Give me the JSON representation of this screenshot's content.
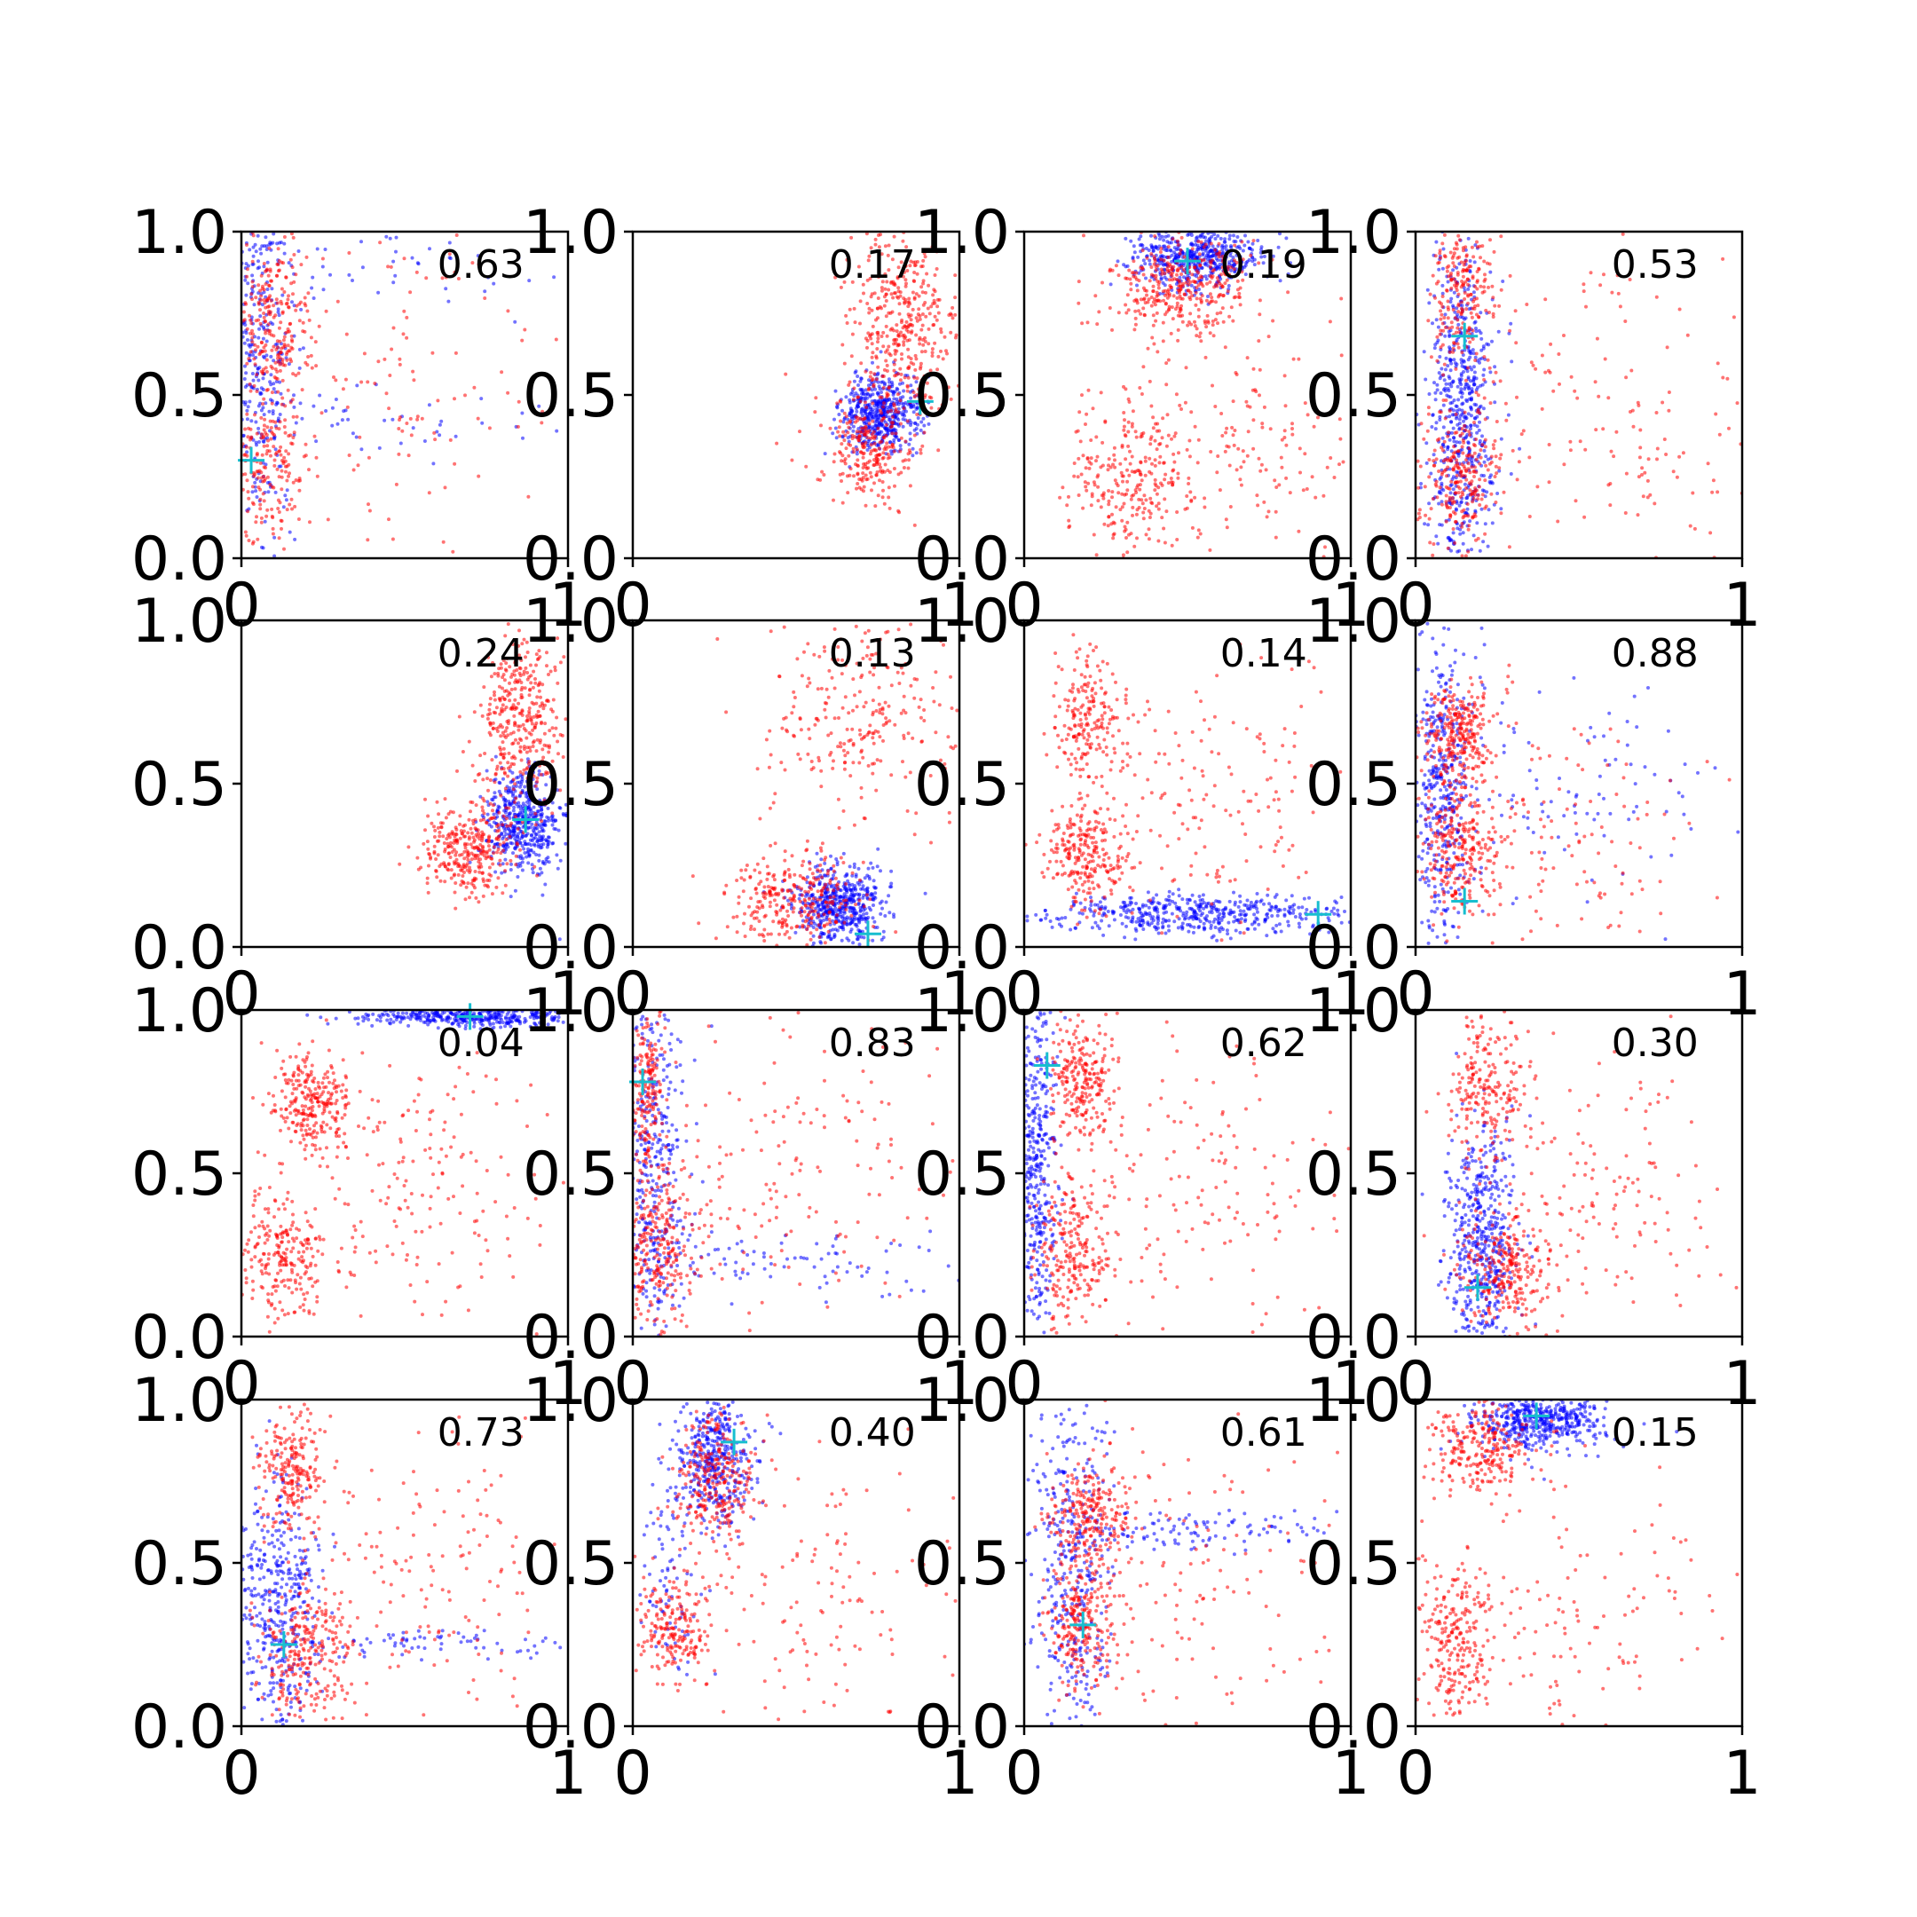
{
  "figure": {
    "layout": {
      "rows": 4,
      "cols": 4
    },
    "background": "#ffffff",
    "colors": {
      "series_blue": "#0000ff",
      "series_red": "#ff0000",
      "marker": "#17becf",
      "axis": "#000000"
    }
  },
  "chart_data": [
    {
      "type": "scatter",
      "label": "0.63",
      "xlim": [
        0,
        1
      ],
      "ylim": [
        0,
        1
      ],
      "xticks": [
        "0",
        "1"
      ],
      "yticks": [
        "0.0",
        "0.5",
        "1.0"
      ],
      "marker": {
        "x": 0.03,
        "y": 0.3
      },
      "series": [
        {
          "color": "blue",
          "clusters": [
            {
              "cx": 0.05,
              "cy": 0.6,
              "sx": 0.06,
              "sy": 0.28,
              "n": 380
            },
            {
              "cx": 0.4,
              "cy": 0.42,
              "sx": 0.4,
              "sy": 0.05,
              "n": 60
            },
            {
              "cx": 0.35,
              "cy": 0.9,
              "sx": 0.3,
              "sy": 0.08,
              "n": 60
            }
          ]
        },
        {
          "color": "red",
          "clusters": [
            {
              "cx": 0.1,
              "cy": 0.72,
              "sx": 0.06,
              "sy": 0.14,
              "n": 240
            },
            {
              "cx": 0.08,
              "cy": 0.28,
              "sx": 0.06,
              "sy": 0.12,
              "n": 200
            },
            {
              "cx": 0.5,
              "cy": 0.5,
              "sx": 0.3,
              "sy": 0.3,
              "n": 160
            }
          ]
        }
      ]
    },
    {
      "type": "scatter",
      "label": "0.17",
      "xlim": [
        0,
        1
      ],
      "ylim": [
        0,
        1
      ],
      "xticks": [
        "0",
        "1"
      ],
      "yticks": [
        "0.0",
        "0.5",
        "1.0"
      ],
      "marker": {
        "x": 0.88,
        "y": 0.48
      },
      "series": [
        {
          "color": "blue",
          "clusters": [
            {
              "cx": 0.76,
              "cy": 0.44,
              "sx": 0.06,
              "sy": 0.06,
              "n": 520
            }
          ]
        },
        {
          "color": "red",
          "clusters": [
            {
              "cx": 0.82,
              "cy": 0.7,
              "sx": 0.08,
              "sy": 0.15,
              "n": 420
            },
            {
              "cx": 0.72,
              "cy": 0.32,
              "sx": 0.07,
              "sy": 0.08,
              "n": 240
            }
          ]
        }
      ]
    },
    {
      "type": "scatter",
      "label": "0.19",
      "xlim": [
        0,
        1
      ],
      "ylim": [
        0,
        1
      ],
      "xticks": [
        "0",
        "1"
      ],
      "yticks": [
        "0.0",
        "0.5",
        "1.0"
      ],
      "marker": {
        "x": 0.5,
        "y": 0.91
      },
      "series": [
        {
          "color": "blue",
          "clusters": [
            {
              "cx": 0.52,
              "cy": 0.92,
              "sx": 0.1,
              "sy": 0.05,
              "n": 520
            }
          ]
        },
        {
          "color": "red",
          "clusters": [
            {
              "cx": 0.48,
              "cy": 0.83,
              "sx": 0.12,
              "sy": 0.08,
              "n": 380
            },
            {
              "cx": 0.33,
              "cy": 0.25,
              "sx": 0.1,
              "sy": 0.12,
              "n": 260
            },
            {
              "cx": 0.65,
              "cy": 0.3,
              "sx": 0.2,
              "sy": 0.2,
              "n": 160
            }
          ]
        }
      ]
    },
    {
      "type": "scatter",
      "label": "0.53",
      "xlim": [
        0,
        1
      ],
      "ylim": [
        0,
        1
      ],
      "xticks": [
        "0",
        "1"
      ],
      "yticks": [
        "0.0",
        "0.5",
        "1.0"
      ],
      "marker": {
        "x": 0.15,
        "y": 0.68
      },
      "series": [
        {
          "color": "blue",
          "clusters": [
            {
              "cx": 0.14,
              "cy": 0.45,
              "sx": 0.05,
              "sy": 0.28,
              "n": 620
            }
          ]
        },
        {
          "color": "red",
          "clusters": [
            {
              "cx": 0.15,
              "cy": 0.8,
              "sx": 0.05,
              "sy": 0.12,
              "n": 220
            },
            {
              "cx": 0.13,
              "cy": 0.25,
              "sx": 0.06,
              "sy": 0.1,
              "n": 220
            },
            {
              "cx": 0.5,
              "cy": 0.4,
              "sx": 0.3,
              "sy": 0.25,
              "n": 200
            }
          ]
        }
      ]
    },
    {
      "type": "scatter",
      "label": "0.24",
      "xlim": [
        0,
        1
      ],
      "ylim": [
        0,
        1
      ],
      "xticks": [
        "0",
        "1"
      ],
      "yticks": [
        "0.0",
        "0.5",
        "1.0"
      ],
      "marker": {
        "x": 0.87,
        "y": 0.39
      },
      "series": [
        {
          "color": "blue",
          "clusters": [
            {
              "cx": 0.86,
              "cy": 0.38,
              "sx": 0.06,
              "sy": 0.08,
              "n": 480
            }
          ]
        },
        {
          "color": "red",
          "clusters": [
            {
              "cx": 0.85,
              "cy": 0.7,
              "sx": 0.07,
              "sy": 0.13,
              "n": 360
            },
            {
              "cx": 0.7,
              "cy": 0.3,
              "sx": 0.07,
              "sy": 0.07,
              "n": 320
            }
          ]
        }
      ]
    },
    {
      "type": "scatter",
      "label": "0.13",
      "xlim": [
        0,
        1
      ],
      "ylim": [
        0,
        1
      ],
      "xticks": [
        "0",
        "1"
      ],
      "yticks": [
        "0.0",
        "0.5",
        "1.0"
      ],
      "marker": {
        "x": 0.72,
        "y": 0.04
      },
      "series": [
        {
          "color": "blue",
          "clusters": [
            {
              "cx": 0.63,
              "cy": 0.13,
              "sx": 0.07,
              "sy": 0.06,
              "n": 520
            }
          ]
        },
        {
          "color": "red",
          "clusters": [
            {
              "cx": 0.5,
              "cy": 0.15,
              "sx": 0.1,
              "sy": 0.07,
              "n": 300
            },
            {
              "cx": 0.7,
              "cy": 0.7,
              "sx": 0.15,
              "sy": 0.17,
              "n": 260
            }
          ]
        }
      ]
    },
    {
      "type": "scatter",
      "label": "0.14",
      "xlim": [
        0,
        1
      ],
      "ylim": [
        0,
        1
      ],
      "xticks": [
        "0",
        "1"
      ],
      "yticks": [
        "0.0",
        "0.5",
        "1.0"
      ],
      "marker": {
        "x": 0.9,
        "y": 0.1
      },
      "series": [
        {
          "color": "blue",
          "clusters": [
            {
              "cx": 0.5,
              "cy": 0.1,
              "sx": 0.28,
              "sy": 0.03,
              "n": 520
            }
          ]
        },
        {
          "color": "red",
          "clusters": [
            {
              "cx": 0.2,
              "cy": 0.7,
              "sx": 0.06,
              "sy": 0.1,
              "n": 200
            },
            {
              "cx": 0.2,
              "cy": 0.28,
              "sx": 0.06,
              "sy": 0.08,
              "n": 240
            },
            {
              "cx": 0.55,
              "cy": 0.45,
              "sx": 0.25,
              "sy": 0.2,
              "n": 180
            }
          ]
        }
      ]
    },
    {
      "type": "scatter",
      "label": "0.88",
      "xlim": [
        0,
        1
      ],
      "ylim": [
        0,
        1
      ],
      "xticks": [
        "0",
        "1"
      ],
      "yticks": [
        "0.0",
        "0.5",
        "1.0"
      ],
      "marker": {
        "x": 0.15,
        "y": 0.14
      },
      "series": [
        {
          "color": "blue",
          "clusters": [
            {
              "cx": 0.08,
              "cy": 0.45,
              "sx": 0.05,
              "sy": 0.25,
              "n": 420
            },
            {
              "cx": 0.45,
              "cy": 0.45,
              "sx": 0.25,
              "sy": 0.15,
              "n": 100
            }
          ]
        },
        {
          "color": "red",
          "clusters": [
            {
              "cx": 0.13,
              "cy": 0.66,
              "sx": 0.05,
              "sy": 0.07,
              "n": 260
            },
            {
              "cx": 0.13,
              "cy": 0.3,
              "sx": 0.06,
              "sy": 0.1,
              "n": 260
            },
            {
              "cx": 0.4,
              "cy": 0.35,
              "sx": 0.25,
              "sy": 0.2,
              "n": 160
            }
          ]
        }
      ]
    },
    {
      "type": "scatter",
      "label": "0.04",
      "xlim": [
        0,
        1
      ],
      "ylim": [
        0,
        1
      ],
      "xticks": [
        "0",
        "1"
      ],
      "yticks": [
        "0.0",
        "0.5",
        "1.0"
      ],
      "marker": {
        "x": 0.7,
        "y": 0.98
      },
      "series": [
        {
          "color": "blue",
          "clusters": [
            {
              "cx": 0.7,
              "cy": 0.98,
              "sx": 0.18,
              "sy": 0.015,
              "n": 420
            }
          ]
        },
        {
          "color": "red",
          "clusters": [
            {
              "cx": 0.22,
              "cy": 0.72,
              "sx": 0.06,
              "sy": 0.07,
              "n": 260
            },
            {
              "cx": 0.12,
              "cy": 0.25,
              "sx": 0.07,
              "sy": 0.1,
              "n": 240
            },
            {
              "cx": 0.55,
              "cy": 0.45,
              "sx": 0.25,
              "sy": 0.25,
              "n": 200
            }
          ]
        }
      ]
    },
    {
      "type": "scatter",
      "label": "0.83",
      "xlim": [
        0,
        1
      ],
      "ylim": [
        0,
        1
      ],
      "xticks": [
        "0",
        "1"
      ],
      "yticks": [
        "0.0",
        "0.5",
        "1.0"
      ],
      "marker": {
        "x": 0.03,
        "y": 0.78
      },
      "series": [
        {
          "color": "blue",
          "clusters": [
            {
              "cx": 0.06,
              "cy": 0.5,
              "sx": 0.05,
              "sy": 0.3,
              "n": 400
            },
            {
              "cx": 0.45,
              "cy": 0.22,
              "sx": 0.28,
              "sy": 0.05,
              "n": 100
            }
          ]
        },
        {
          "color": "red",
          "clusters": [
            {
              "cx": 0.04,
              "cy": 0.78,
              "sx": 0.03,
              "sy": 0.12,
              "n": 200
            },
            {
              "cx": 0.08,
              "cy": 0.28,
              "sx": 0.06,
              "sy": 0.12,
              "n": 280
            },
            {
              "cx": 0.5,
              "cy": 0.5,
              "sx": 0.25,
              "sy": 0.28,
              "n": 180
            }
          ]
        }
      ]
    },
    {
      "type": "scatter",
      "label": "0.62",
      "xlim": [
        0,
        1
      ],
      "ylim": [
        0,
        1
      ],
      "xticks": [
        "0",
        "1"
      ],
      "yticks": [
        "0.0",
        "0.5",
        "1.0"
      ],
      "marker": {
        "x": 0.07,
        "y": 0.83
      },
      "series": [
        {
          "color": "blue",
          "clusters": [
            {
              "cx": 0.04,
              "cy": 0.55,
              "sx": 0.03,
              "sy": 0.28,
              "n": 420
            }
          ]
        },
        {
          "color": "red",
          "clusters": [
            {
              "cx": 0.18,
              "cy": 0.78,
              "sx": 0.05,
              "sy": 0.1,
              "n": 240
            },
            {
              "cx": 0.15,
              "cy": 0.25,
              "sx": 0.06,
              "sy": 0.1,
              "n": 240
            },
            {
              "cx": 0.5,
              "cy": 0.5,
              "sx": 0.25,
              "sy": 0.25,
              "n": 160
            }
          ]
        }
      ]
    },
    {
      "type": "scatter",
      "label": "0.30",
      "xlim": [
        0,
        1
      ],
      "ylim": [
        0,
        1
      ],
      "xticks": [
        "0",
        "1"
      ],
      "yticks": [
        "0.0",
        "0.5",
        "1.0"
      ],
      "marker": {
        "x": 0.19,
        "y": 0.15
      },
      "series": [
        {
          "color": "blue",
          "clusters": [
            {
              "cx": 0.2,
              "cy": 0.3,
              "sx": 0.05,
              "sy": 0.18,
              "n": 500
            }
          ]
        },
        {
          "color": "red",
          "clusters": [
            {
              "cx": 0.22,
              "cy": 0.78,
              "sx": 0.06,
              "sy": 0.12,
              "n": 220
            },
            {
              "cx": 0.28,
              "cy": 0.2,
              "sx": 0.07,
              "sy": 0.08,
              "n": 260
            },
            {
              "cx": 0.55,
              "cy": 0.45,
              "sx": 0.25,
              "sy": 0.25,
              "n": 160
            }
          ]
        }
      ]
    },
    {
      "type": "scatter",
      "label": "0.73",
      "xlim": [
        0,
        1
      ],
      "ylim": [
        0,
        1
      ],
      "xticks": [
        "0",
        "1"
      ],
      "yticks": [
        "0.0",
        "0.5",
        "1.0"
      ],
      "marker": {
        "x": 0.13,
        "y": 0.25
      },
      "series": [
        {
          "color": "blue",
          "clusters": [
            {
              "cx": 0.12,
              "cy": 0.35,
              "sx": 0.06,
              "sy": 0.2,
              "n": 420
            },
            {
              "cx": 0.55,
              "cy": 0.25,
              "sx": 0.28,
              "sy": 0.02,
              "n": 80
            }
          ]
        },
        {
          "color": "red",
          "clusters": [
            {
              "cx": 0.15,
              "cy": 0.78,
              "sx": 0.05,
              "sy": 0.1,
              "n": 220
            },
            {
              "cx": 0.2,
              "cy": 0.22,
              "sx": 0.07,
              "sy": 0.1,
              "n": 260
            },
            {
              "cx": 0.55,
              "cy": 0.45,
              "sx": 0.25,
              "sy": 0.25,
              "n": 160
            }
          ]
        }
      ]
    },
    {
      "type": "scatter",
      "label": "0.40",
      "xlim": [
        0,
        1
      ],
      "ylim": [
        0,
        1
      ],
      "xticks": [
        "0",
        "1"
      ],
      "yticks": [
        "0.0",
        "0.5",
        "1.0"
      ],
      "marker": {
        "x": 0.31,
        "y": 0.87
      },
      "series": [
        {
          "color": "blue",
          "clusters": [
            {
              "cx": 0.25,
              "cy": 0.82,
              "sx": 0.06,
              "sy": 0.1,
              "n": 420
            },
            {
              "cx": 0.12,
              "cy": 0.45,
              "sx": 0.05,
              "sy": 0.15,
              "n": 80
            }
          ]
        },
        {
          "color": "red",
          "clusters": [
            {
              "cx": 0.25,
              "cy": 0.75,
              "sx": 0.06,
              "sy": 0.1,
              "n": 260
            },
            {
              "cx": 0.13,
              "cy": 0.3,
              "sx": 0.05,
              "sy": 0.08,
              "n": 200
            },
            {
              "cx": 0.55,
              "cy": 0.45,
              "sx": 0.25,
              "sy": 0.25,
              "n": 160
            }
          ]
        }
      ]
    },
    {
      "type": "scatter",
      "label": "0.61",
      "xlim": [
        0,
        1
      ],
      "ylim": [
        0,
        1
      ],
      "xticks": [
        "0",
        "1"
      ],
      "yticks": [
        "0.0",
        "0.5",
        "1.0"
      ],
      "marker": {
        "x": 0.18,
        "y": 0.31
      },
      "series": [
        {
          "color": "blue",
          "clusters": [
            {
              "cx": 0.15,
              "cy": 0.5,
              "sx": 0.06,
              "sy": 0.28,
              "n": 380
            },
            {
              "cx": 0.55,
              "cy": 0.6,
              "sx": 0.25,
              "sy": 0.03,
              "n": 120
            }
          ]
        },
        {
          "color": "red",
          "clusters": [
            {
              "cx": 0.2,
              "cy": 0.65,
              "sx": 0.06,
              "sy": 0.08,
              "n": 240
            },
            {
              "cx": 0.18,
              "cy": 0.32,
              "sx": 0.05,
              "sy": 0.1,
              "n": 240
            },
            {
              "cx": 0.5,
              "cy": 0.45,
              "sx": 0.25,
              "sy": 0.25,
              "n": 140
            }
          ]
        }
      ]
    },
    {
      "type": "scatter",
      "label": "0.15",
      "xlim": [
        0,
        1
      ],
      "ylim": [
        0,
        1
      ],
      "xticks": [
        "0",
        "1"
      ],
      "yticks": [
        "0.0",
        "0.5",
        "1.0"
      ],
      "marker": {
        "x": 0.37,
        "y": 0.95
      },
      "series": [
        {
          "color": "blue",
          "clusters": [
            {
              "cx": 0.38,
              "cy": 0.93,
              "sx": 0.1,
              "sy": 0.04,
              "n": 480
            }
          ]
        },
        {
          "color": "red",
          "clusters": [
            {
              "cx": 0.2,
              "cy": 0.85,
              "sx": 0.08,
              "sy": 0.08,
              "n": 260
            },
            {
              "cx": 0.12,
              "cy": 0.25,
              "sx": 0.06,
              "sy": 0.12,
              "n": 240
            },
            {
              "cx": 0.5,
              "cy": 0.3,
              "sx": 0.25,
              "sy": 0.2,
              "n": 140
            }
          ]
        }
      ]
    }
  ]
}
